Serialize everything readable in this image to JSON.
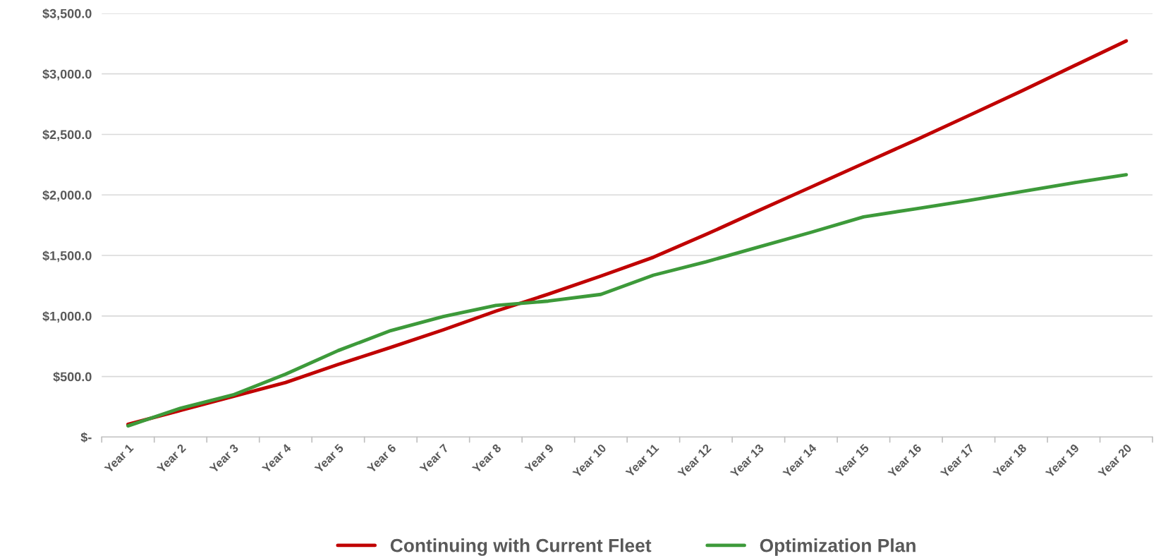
{
  "chart_data": {
    "type": "line",
    "categories": [
      "Year 1",
      "Year 2",
      "Year 3",
      "Year 4",
      "Year 5",
      "Year 6",
      "Year 7",
      "Year 8",
      "Year 9",
      "Year 10",
      "Year 11",
      "Year 12",
      "Year 13",
      "Year 14",
      "Year 15",
      "Year 16",
      "Year 17",
      "Year 18",
      "Year 19",
      "Year 20"
    ],
    "series": [
      {
        "name": "Continuing with Current Fleet",
        "color": "#c00000",
        "values": [
          105,
          220,
          335,
          450,
          600,
          740,
          885,
          1040,
          1180,
          1330,
          1485,
          1673,
          1870,
          2065,
          2260,
          2455,
          2655,
          2857,
          3065,
          3272
        ]
      },
      {
        "name": "Optimization Plan",
        "color": "#3d9a3a",
        "values": [
          92,
          238,
          348,
          519,
          714,
          879,
          995,
          1087,
          1123,
          1178,
          1337,
          1447,
          1569,
          1691,
          1819,
          1886,
          1954,
          2027,
          2100,
          2167
        ]
      }
    ],
    "ylim": [
      0,
      3500
    ],
    "yticks": [
      {
        "value": 0,
        "label": "$-"
      },
      {
        "value": 500,
        "label": "$500.0"
      },
      {
        "value": 1000,
        "label": "$1,000.0"
      },
      {
        "value": 1500,
        "label": "$1,500.0"
      },
      {
        "value": 2000,
        "label": "$2,000.0"
      },
      {
        "value": 2500,
        "label": "$2,500.0"
      },
      {
        "value": 3000,
        "label": "$3,000.0"
      },
      {
        "value": 3500,
        "label": "$3,500.0"
      }
    ],
    "grid": "y",
    "legend": "bottom",
    "marker": "none",
    "line_style": "solid"
  }
}
